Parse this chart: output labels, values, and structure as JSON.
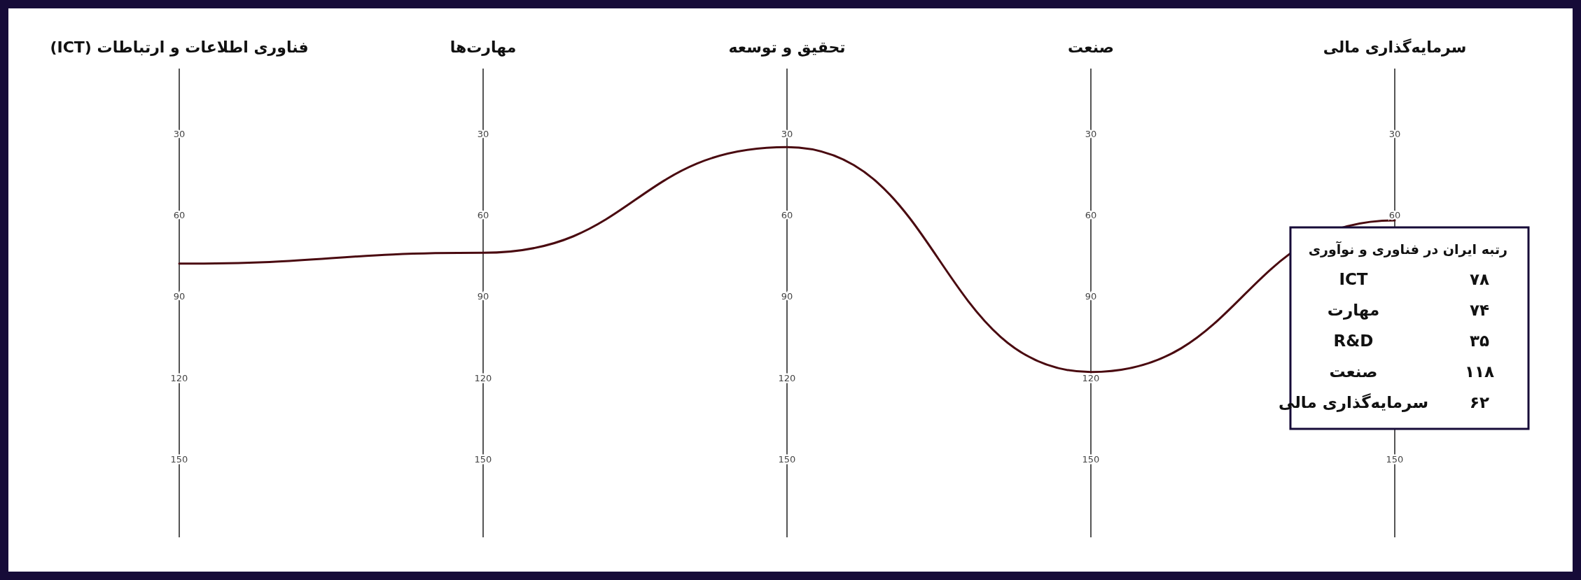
{
  "chart_data": {
    "type": "line",
    "grid": "x",
    "categories": [
      "فناوری اطلاعات و ارتباطات (ICT)",
      "مهارت‌ها",
      "تحقیق و توسعه",
      "صنعت",
      "سرمایه‌گذاری مالی"
    ],
    "series": [
      {
        "color": "#4a0a10",
        "values": [
          78,
          74,
          35,
          118,
          62
        ]
      }
    ],
    "ylim": [
      179,
      6
    ],
    "yticks": [
      30,
      60,
      90,
      120,
      150
    ],
    "y2lim": [
      179,
      6
    ],
    "y2ticks": [
      30,
      60,
      90,
      120,
      150
    ],
    "y3lim": [
      179,
      6
    ],
    "y3ticks": [
      30,
      60,
      90,
      120,
      150
    ],
    "annotations": [
      "رتبه ایران در فناوری و نوآوری",
      "ICT",
      "۷۸",
      "مهارت",
      "۷۴",
      "R&D",
      "۳۵",
      "صنعت",
      "۱۱۸",
      "سرمایه‌گذاری مالی",
      "۶۲",
      "30",
      "60",
      "90",
      "120",
      "150",
      "30",
      "60",
      "90",
      "120",
      "150"
    ]
  }
}
